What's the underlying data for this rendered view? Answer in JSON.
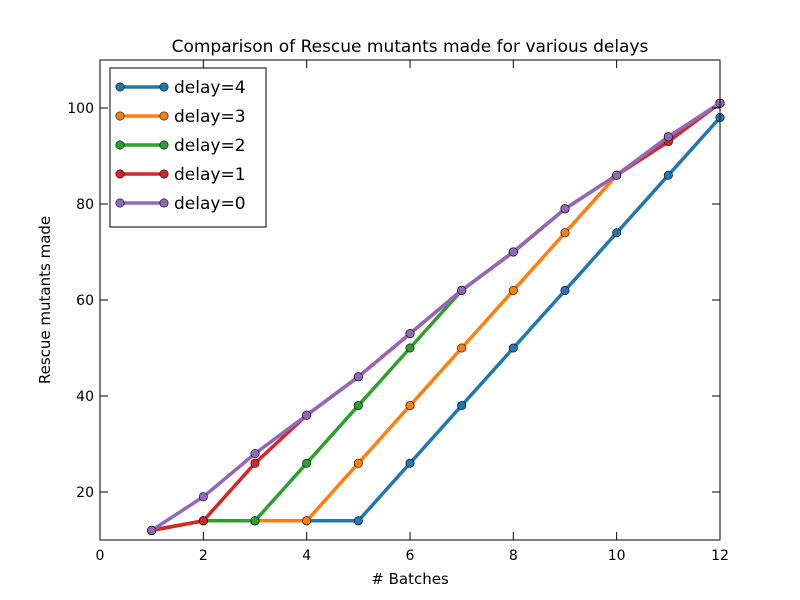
{
  "chart_data": {
    "type": "line",
    "title": "Comparison of Rescue mutants made for various delays",
    "xlabel": "# Batches",
    "ylabel": "Rescue mutants made",
    "xlim": [
      0,
      12
    ],
    "ylim": [
      10,
      110
    ],
    "xticks": [
      0,
      2,
      4,
      6,
      8,
      10,
      12
    ],
    "yticks": [
      20,
      40,
      60,
      80,
      100
    ],
    "grid": false,
    "legend_position": "top-left",
    "x": [
      1,
      2,
      3,
      4,
      5,
      6,
      7,
      8,
      9,
      10,
      11,
      12
    ],
    "series": [
      {
        "name": "delay=4",
        "color": "#1f77b4",
        "values": [
          12,
          14,
          14,
          14,
          14,
          26,
          38,
          50,
          62,
          74,
          86,
          98
        ]
      },
      {
        "name": "delay=3",
        "color": "#ff7f0e",
        "values": [
          12,
          14,
          14,
          14,
          26,
          38,
          50,
          62,
          74,
          86,
          94,
          101
        ]
      },
      {
        "name": "delay=2",
        "color": "#2ca02c",
        "values": [
          12,
          14,
          14,
          26,
          38,
          50,
          62,
          70,
          79,
          86,
          94,
          101
        ]
      },
      {
        "name": "delay=1",
        "color": "#d62728",
        "values": [
          12,
          14,
          26,
          36,
          44,
          53,
          62,
          70,
          79,
          86,
          93,
          101
        ]
      },
      {
        "name": "delay=0",
        "color": "#9467bd",
        "values": [
          12,
          19,
          28,
          36,
          44,
          53,
          62,
          70,
          79,
          86,
          94,
          101
        ]
      }
    ]
  }
}
